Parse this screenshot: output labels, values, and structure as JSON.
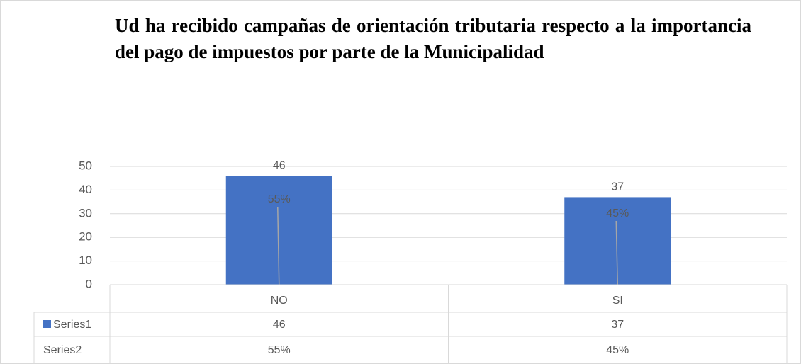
{
  "chart_data": {
    "type": "bar",
    "title": "Ud ha recibido campañas de orientación tributaria respecto a la importancia del pago de impuestos por parte de la Municipalidad",
    "categories": [
      "NO",
      "SI"
    ],
    "series": [
      {
        "name": "Series1",
        "color": "#4472c4",
        "values": [
          46,
          37
        ]
      },
      {
        "name": "Series2",
        "values": [
          55,
          45
        ],
        "value_labels": [
          "55%",
          "45%"
        ]
      }
    ],
    "ylim": [
      0,
      50
    ],
    "yticks": [
      0,
      10,
      20,
      30,
      40,
      50
    ],
    "grid": true,
    "data_table": true
  }
}
